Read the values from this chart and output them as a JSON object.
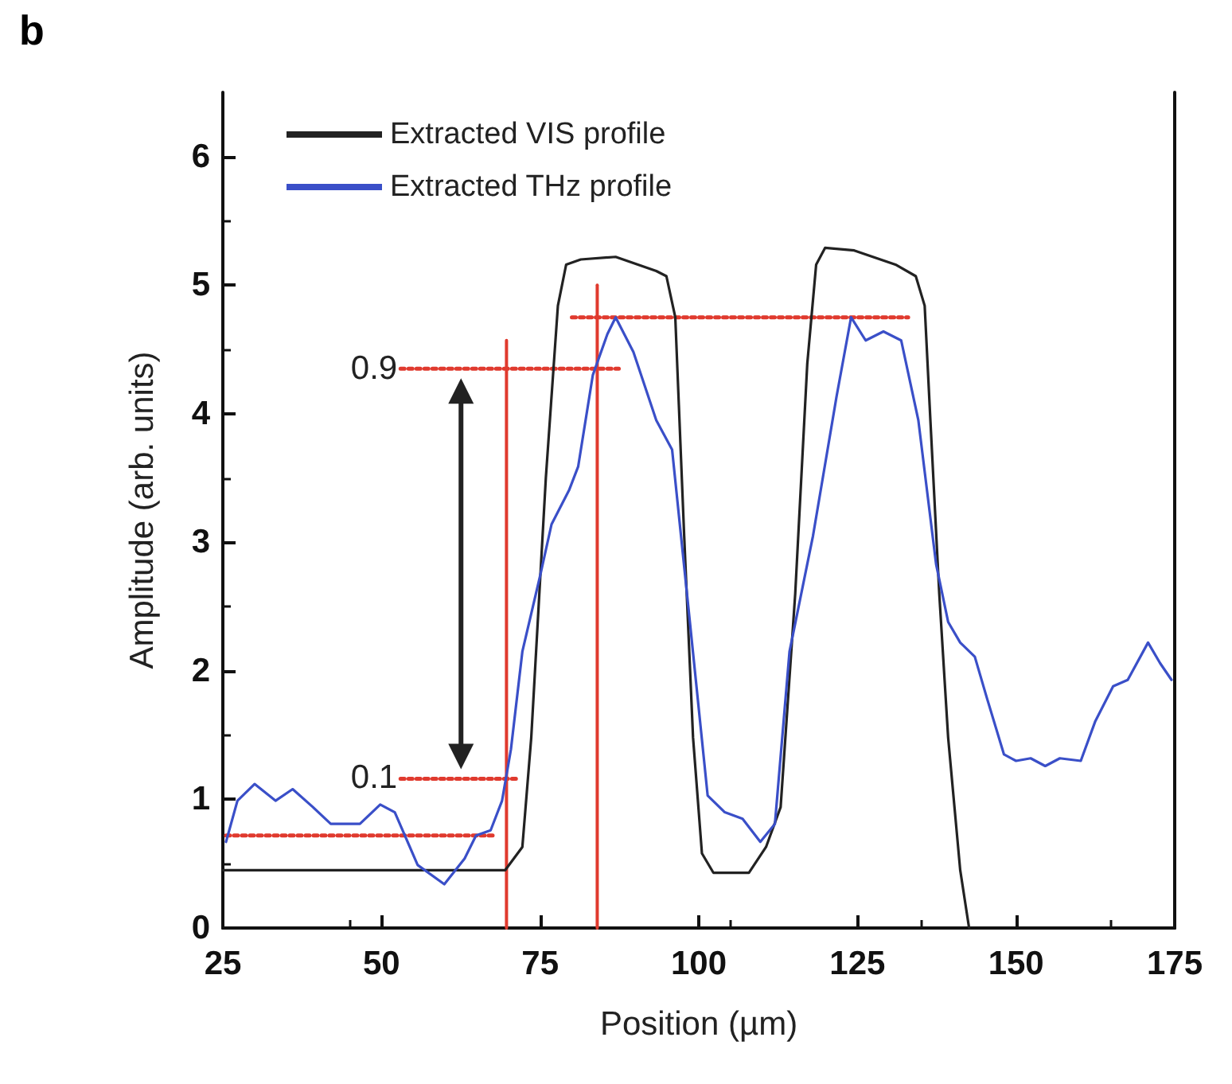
{
  "chart_data": {
    "type": "line",
    "xlabel": "Position (µm)",
    "ylabel": "Amplitude (arb. units)",
    "xlim": [
      25,
      175
    ],
    "xticks": [
      25,
      50,
      75,
      100,
      125,
      150,
      175
    ],
    "ylim": [
      0,
      6.5
    ],
    "yticks": [
      0,
      1,
      2,
      3,
      4,
      5,
      6
    ],
    "grid": false,
    "legend": "top left",
    "marker": "none",
    "annotations": [
      "b",
      {
        "text": "0.9",
        "x": 53,
        "y": 4.35
      },
      {
        "text": "0.1",
        "x": 53,
        "y": 1.16
      }
    ],
    "series": [
      {
        "name": "Extracted VIS profile",
        "color": "#222222",
        "x": [
          25,
          50,
          69.5,
          72.2,
          73.6,
          75.9,
          77.8,
          79.1,
          81.4,
          86.9,
          93.3,
          94.9,
          96.3,
          97.7,
          99.1,
          100.5,
          102.3,
          107.9,
          110.6,
          112.9,
          115.2,
          117.1,
          118.5,
          119.9,
          124.5,
          131,
          134.2,
          135.6,
          136.5,
          137.9,
          139.3,
          141.2,
          142.6
        ],
        "values": [
          0.45,
          0.45,
          0.45,
          0.63,
          1.48,
          3.5,
          4.84,
          5.16,
          5.2,
          5.22,
          5.11,
          5.07,
          4.75,
          3.05,
          1.48,
          0.58,
          0.43,
          0.43,
          0.63,
          0.94,
          2.6,
          4.39,
          5.16,
          5.29,
          5.27,
          5.16,
          5.07,
          4.84,
          3.95,
          2.6,
          1.48,
          0.45,
          0
        ]
      },
      {
        "name": "Extracted THz profile",
        "color": "#3a4fc8",
        "x": [
          25.5,
          27.3,
          30,
          33.3,
          36,
          39.2,
          42,
          46.6,
          49.8,
          52.1,
          55.7,
          59.9,
          63.1,
          64.9,
          67.2,
          69,
          70.4,
          72.2,
          75,
          76.8,
          79.6,
          81,
          83.3,
          85.6,
          86.9,
          89.7,
          93.3,
          95.8,
          98.6,
          101.4,
          104.1,
          106.9,
          109.7,
          112,
          114.3,
          118,
          121.7,
          124,
          126.3,
          129.1,
          131.9,
          134.6,
          137.4,
          139.3,
          141.2,
          143.5,
          145.4,
          148.1,
          150,
          152.3,
          154.6,
          156.9,
          160.2,
          162.5,
          165.3,
          167.6,
          170.8,
          172.7,
          174.5
        ],
        "values": [
          0.67,
          0.99,
          1.12,
          0.99,
          1.08,
          0.94,
          0.81,
          0.81,
          0.96,
          0.9,
          0.49,
          0.34,
          0.54,
          0.72,
          0.76,
          0.99,
          1.39,
          2.15,
          2.74,
          3.14,
          3.41,
          3.59,
          4.3,
          4.62,
          4.75,
          4.48,
          3.95,
          3.72,
          2.38,
          1.03,
          0.9,
          0.85,
          0.67,
          0.81,
          2.15,
          3.05,
          4.13,
          4.75,
          4.57,
          4.64,
          4.57,
          3.95,
          2.83,
          2.38,
          2.22,
          2.11,
          1.79,
          1.35,
          1.3,
          1.32,
          1.26,
          1.32,
          1.3,
          1.61,
          1.88,
          1.93,
          2.22,
          2.06,
          1.93
        ]
      },
      {
        "color": "#e03a2e",
        "line_style": "dotted",
        "x": [
          25.5,
          67.7
        ],
        "values": [
          0.72,
          0.72
        ]
      },
      {
        "color": "#e03a2e",
        "line_style": "dotted",
        "x": [
          53,
          71.8
        ],
        "values": [
          1.16,
          1.16
        ]
      },
      {
        "color": "#e03a2e",
        "line_style": "dotted",
        "x": [
          53,
          87.4
        ],
        "values": [
          4.35,
          4.35
        ]
      },
      {
        "color": "#e03a2e",
        "line_style": "dotted",
        "x": [
          80,
          133
        ],
        "values": [
          4.75,
          4.75
        ]
      },
      {
        "color": "#e03a2e",
        "line_style": "solid",
        "x": [
          69.7,
          69.7
        ],
        "values": [
          0,
          4.57
        ]
      },
      {
        "color": "#e03a2e",
        "line_style": "solid",
        "x": [
          84,
          84
        ],
        "values": [
          0,
          5
        ]
      }
    ]
  }
}
